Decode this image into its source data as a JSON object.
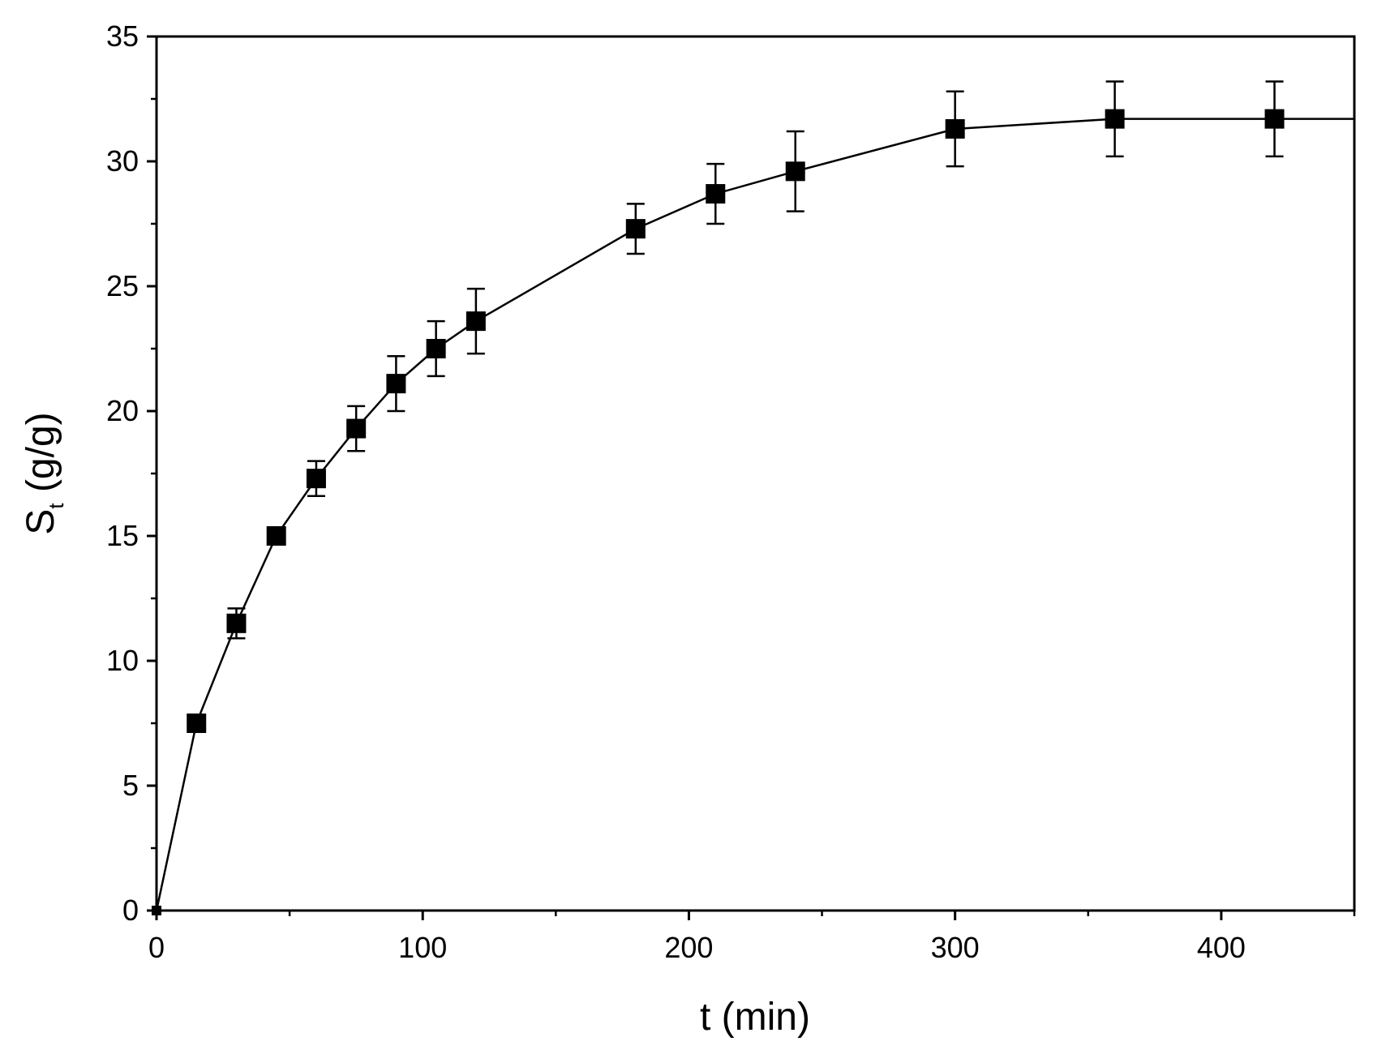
{
  "chart_data": {
    "type": "line",
    "title": "",
    "xlabel": "t (min)",
    "ylabel": {
      "main": "S",
      "subscript": "t",
      "unit": " (g/g)"
    },
    "xlim": [
      0,
      450
    ],
    "ylim": [
      0,
      35
    ],
    "x_ticks": [
      0,
      100,
      200,
      300,
      400
    ],
    "x_minor_ticks": [
      50,
      150,
      250,
      350,
      450
    ],
    "y_ticks": [
      0,
      5,
      10,
      15,
      20,
      25,
      30,
      35
    ],
    "grid": false,
    "legend": "none",
    "series": [
      {
        "marker": "square",
        "color": "#000000",
        "x": [
          0,
          15,
          30,
          45,
          60,
          75,
          90,
          105,
          120,
          180,
          210,
          240,
          300,
          360,
          420,
          450
        ],
        "y": [
          0,
          7.5,
          11.5,
          15.0,
          17.3,
          19.3,
          21.1,
          22.5,
          23.6,
          27.3,
          28.7,
          29.6,
          31.3,
          31.7,
          31.7,
          31.7
        ],
        "error": [
          0,
          0,
          0.6,
          0,
          0.7,
          0.9,
          1.1,
          1.1,
          1.3,
          1.0,
          1.2,
          1.6,
          1.5,
          1.5,
          1.5,
          0
        ],
        "marker_visible": [
          true,
          true,
          true,
          true,
          true,
          true,
          true,
          true,
          true,
          true,
          true,
          true,
          true,
          true,
          true,
          false
        ]
      }
    ]
  }
}
